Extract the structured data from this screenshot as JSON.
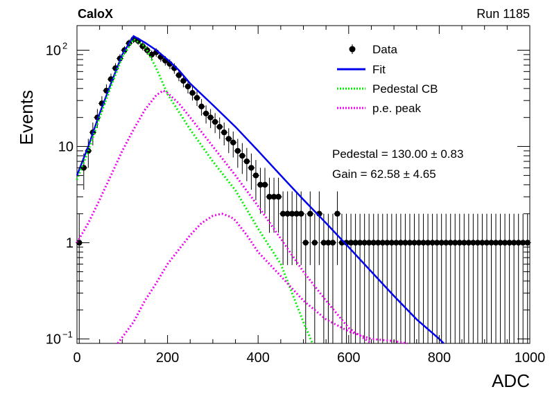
{
  "header": {
    "experiment": "CaloX",
    "run": "Run 1185"
  },
  "chart_data": {
    "type": "scatter",
    "xlabel": "ADC",
    "ylabel": "Events",
    "xlim": [
      0,
      1000
    ],
    "ylim": [
      0.09,
      180
    ],
    "yscale": "log",
    "x_ticks": [
      "0",
      "200",
      "400",
      "600",
      "800",
      "1000"
    ],
    "y_ticks": [
      {
        "v": 0.1,
        "base": "10",
        "exp": "−1"
      },
      {
        "v": 1,
        "base": "1",
        "exp": ""
      },
      {
        "v": 10,
        "base": "10",
        "exp": ""
      },
      {
        "v": 100,
        "base": "10",
        "exp": "2"
      }
    ],
    "legend_position": "top-right",
    "series": [
      {
        "name": "Data",
        "kind": "points",
        "color": "#000000",
        "x": [
          5,
          15,
          25,
          35,
          45,
          55,
          65,
          75,
          85,
          95,
          105,
          115,
          125,
          135,
          145,
          155,
          165,
          175,
          185,
          195,
          205,
          215,
          225,
          235,
          245,
          255,
          265,
          275,
          285,
          295,
          305,
          315,
          325,
          335,
          345,
          355,
          365,
          375,
          385,
          395,
          405,
          415,
          425,
          435,
          445,
          455,
          465,
          475,
          485,
          495,
          505,
          515,
          525,
          535,
          545,
          555,
          565,
          575,
          585,
          595,
          605,
          615,
          625,
          635,
          645,
          655,
          665,
          675,
          685,
          695,
          705,
          715,
          725,
          735,
          745,
          755,
          765,
          775,
          785,
          795,
          805,
          815,
          825,
          835,
          845,
          855,
          865,
          875,
          885,
          895,
          905,
          915,
          925,
          935,
          945,
          955,
          965,
          975,
          985,
          995
        ],
        "y": [
          1,
          6,
          9,
          14,
          20,
          28,
          38,
          50,
          65,
          82,
          100,
          118,
          130,
          125,
          110,
          100,
          90,
          95,
          85,
          78,
          72,
          65,
          55,
          48,
          42,
          36,
          32,
          26,
          22,
          20,
          18,
          16,
          14,
          12,
          11,
          9,
          8,
          7,
          6,
          5,
          4,
          4,
          3,
          3,
          3,
          2,
          2,
          2,
          2,
          2,
          1,
          2,
          1,
          2,
          1,
          1,
          1,
          2,
          1,
          1,
          1,
          1,
          1,
          1,
          1,
          1,
          1,
          1,
          1,
          1,
          1,
          1,
          1,
          1,
          1,
          1,
          1,
          1,
          1,
          1,
          1,
          1,
          1,
          1,
          1,
          1,
          1,
          1,
          1,
          1,
          1,
          1,
          1,
          1,
          1,
          1,
          1,
          1,
          1,
          1
        ]
      },
      {
        "name": "Fit",
        "kind": "line",
        "color": "#0000ee",
        "x": [
          0,
          25,
          50,
          75,
          100,
          125,
          150,
          175,
          200,
          225,
          250,
          300,
          350,
          400,
          450,
          500,
          550,
          600,
          650,
          700,
          750,
          800,
          810
        ],
        "y": [
          5,
          10,
          22,
          45,
          90,
          140,
          120,
          100,
          80,
          62,
          45,
          27,
          16,
          9,
          5,
          2.8,
          1.6,
          0.9,
          0.5,
          0.28,
          0.16,
          0.1,
          0.09
        ]
      },
      {
        "name": "Pedestal CB",
        "kind": "dotted",
        "color": "#00ee00",
        "x": [
          0,
          25,
          50,
          75,
          100,
          125,
          150,
          175,
          200,
          250,
          300,
          350,
          400,
          450,
          500,
          520
        ],
        "y": [
          4.5,
          9,
          20,
          42,
          85,
          130,
          110,
          65,
          35,
          15,
          7,
          3.5,
          1.4,
          0.6,
          0.15,
          0.09
        ]
      },
      {
        "name": "p.e. peak",
        "kind": "dotted",
        "color": "#ee00ee",
        "groups": [
          {
            "x": [
              0,
              25,
              50,
              75,
              100,
              125,
              150,
              175,
              190,
              200,
              225,
              250,
              300,
              350,
              400,
              450,
              500,
              550,
              600,
              650
            ],
            "y": [
              1,
              1.6,
              2.8,
              5,
              9,
              15,
              24,
              34,
              38,
              36,
              28,
              20,
              10,
              5,
              2.4,
              1.1,
              0.5,
              0.25,
              0.13,
              0.09
            ]
          },
          {
            "x": [
              90,
              125,
              150,
              175,
              200,
              225,
              250,
              275,
              300,
              320,
              340,
              350,
              375,
              400,
              450,
              500,
              550,
              600,
              650,
              700,
              730
            ],
            "y": [
              0.09,
              0.15,
              0.25,
              0.38,
              0.6,
              0.85,
              1.2,
              1.6,
              1.9,
              2,
              1.85,
              1.7,
              1.2,
              0.8,
              0.45,
              0.25,
              0.16,
              0.12,
              0.1,
              0.095,
              0.09
            ]
          }
        ]
      }
    ],
    "annotations": [
      {
        "label": "Pedestal = 130.00",
        "error": "± 0.83"
      },
      {
        "label": "Gain = 62.58",
        "error": "± 4.65"
      }
    ]
  }
}
